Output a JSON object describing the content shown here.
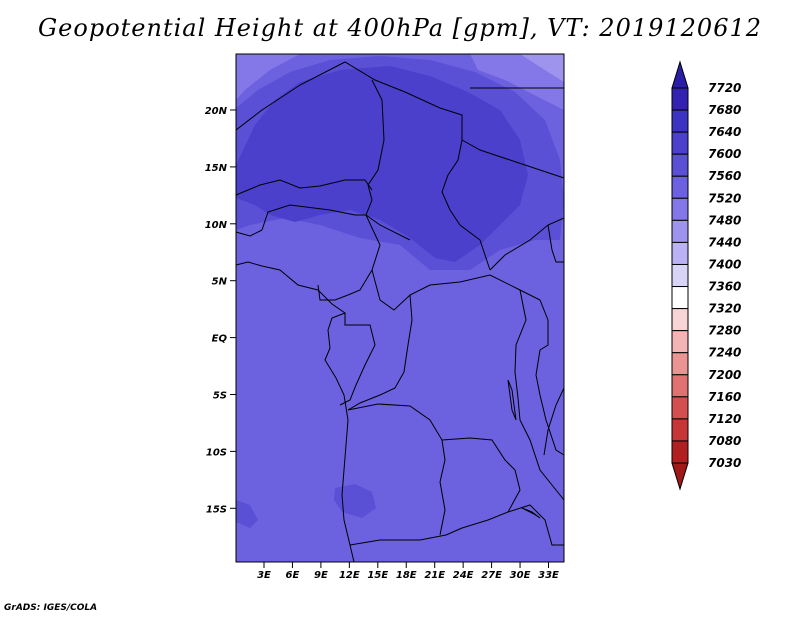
{
  "title": "Geopotential Height at 400hPa [gpm], VT: 2019120612",
  "footer": "GrADS: IGES/COLA",
  "map": {
    "lat_ticks": [
      "20N",
      "15N",
      "10N",
      "5N",
      "EQ",
      "5S",
      "10S",
      "15S"
    ],
    "lon_ticks": [
      "3E",
      "6E",
      "9E",
      "12E",
      "15E",
      "18E",
      "21E",
      "24E",
      "27E",
      "30E",
      "33E"
    ]
  },
  "colorbar": {
    "levels": [
      "7720",
      "7680",
      "7640",
      "7600",
      "7560",
      "7520",
      "7480",
      "7440",
      "7400",
      "7360",
      "7320",
      "7280",
      "7240",
      "7200",
      "7160",
      "7120",
      "7080",
      "7030"
    ],
    "colors": [
      "#2a1ea6",
      "#3322b2",
      "#3d33c2",
      "#4a40cc",
      "#5a50d6",
      "#6c61de",
      "#8478e8",
      "#9e94ee",
      "#bab2f4",
      "#d8d4f8",
      "#ffffff",
      "#f8d4d4",
      "#f2b4b4",
      "#ea9494",
      "#e07272",
      "#d45050",
      "#c63636",
      "#b02020",
      "#a01818"
    ]
  },
  "fill_colors": {
    "darkest": "#3d33c2",
    "dark": "#4a40cc",
    "mid": "#5a50d6",
    "base": "#6c61de",
    "light": "#8478e8",
    "lighter": "#9e94ee"
  }
}
